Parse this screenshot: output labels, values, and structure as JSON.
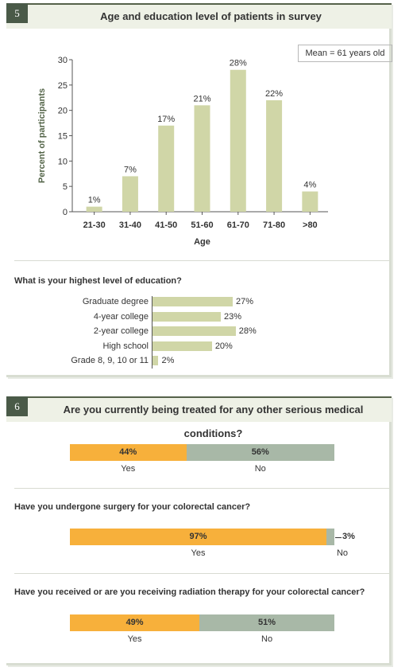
{
  "colors": {
    "green_bar": "#d0d6a7",
    "orange": "#f7b03b",
    "gray": "#a8b8a7",
    "panel_header": "#eef1e6",
    "number_box": "#4a5a48"
  },
  "section5": {
    "number": "5",
    "title": "Age and education level of patients in survey",
    "mean_label": "Mean = 61 years old"
  },
  "section6": {
    "number": "6",
    "title": "Are you currently being treated for any other serious medical conditions?"
  },
  "chart_data": [
    {
      "type": "bar",
      "categories": [
        "21-30",
        "31-40",
        "41-50",
        "51-60",
        "61-70",
        "71-80",
        ">80"
      ],
      "values": [
        1,
        7,
        17,
        21,
        28,
        22,
        4
      ],
      "value_labels": [
        "1%",
        "7%",
        "17%",
        "21%",
        "28%",
        "22%",
        "4%"
      ],
      "xlabel": "Age",
      "ylabel": "Percent of participants",
      "ylim": [
        0,
        30
      ],
      "yticks": [
        0,
        5,
        10,
        15,
        20,
        25,
        30
      ],
      "grid": false
    },
    {
      "type": "bar",
      "orientation": "horizontal",
      "title": "What is your highest level of education?",
      "categories": [
        "Graduate degree",
        "4-year college",
        "2-year college",
        "High school",
        "Grade 8, 9, 10 or 11"
      ],
      "values": [
        27,
        23,
        28,
        20,
        2
      ],
      "value_labels": [
        "27%",
        "23%",
        "28%",
        "20%",
        "2%"
      ]
    },
    {
      "type": "bar",
      "orientation": "stacked-horizontal",
      "categories": [
        "Yes",
        "No"
      ],
      "values": [
        44,
        56
      ],
      "value_labels": [
        "44%",
        "56%"
      ]
    },
    {
      "type": "bar",
      "orientation": "stacked-horizontal",
      "title": "Have you undergone surgery for your colorectal cancer?",
      "categories": [
        "Yes",
        "No"
      ],
      "values": [
        97,
        3
      ],
      "value_labels": [
        "97%",
        "3%"
      ]
    },
    {
      "type": "bar",
      "orientation": "stacked-horizontal",
      "title": "Have you received or are you receiving radiation therapy for your colorectal cancer?",
      "categories": [
        "Yes",
        "No"
      ],
      "values": [
        49,
        51
      ],
      "value_labels": [
        "49%",
        "51%"
      ]
    }
  ]
}
